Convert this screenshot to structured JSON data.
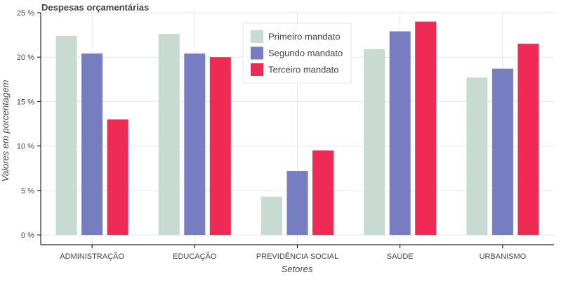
{
  "chart_data": {
    "type": "bar",
    "title": "Despesas orçamentárias",
    "xlabel": "Setores",
    "ylabel": "Valores em porcentagem",
    "categories": [
      "ADMINISTRAÇÃO",
      "EDUCAÇÃO",
      "PREVIDÊNCIA SOCIAL",
      "SAÚDE",
      "URBANISMO"
    ],
    "series": [
      {
        "name": "Primeiro mandato",
        "color": "#c7dbd3",
        "values": [
          22.4,
          22.6,
          4.3,
          20.9,
          17.7
        ]
      },
      {
        "name": "Segundo mandato",
        "color": "#767dc1",
        "values": [
          20.4,
          20.4,
          7.2,
          22.9,
          18.7
        ]
      },
      {
        "name": "Terceiro mandato",
        "color": "#ef2b55",
        "values": [
          13.0,
          20.0,
          9.5,
          24.0,
          21.5
        ]
      }
    ],
    "ylim": [
      -1.1,
      25
    ],
    "yticks": [
      0,
      5,
      10,
      15,
      20,
      25
    ],
    "ytick_labels": [
      "0 %",
      "5 %",
      "10 %",
      "15 %",
      "20 %",
      "25 %"
    ],
    "grid": true,
    "legend_position": "top-center"
  }
}
